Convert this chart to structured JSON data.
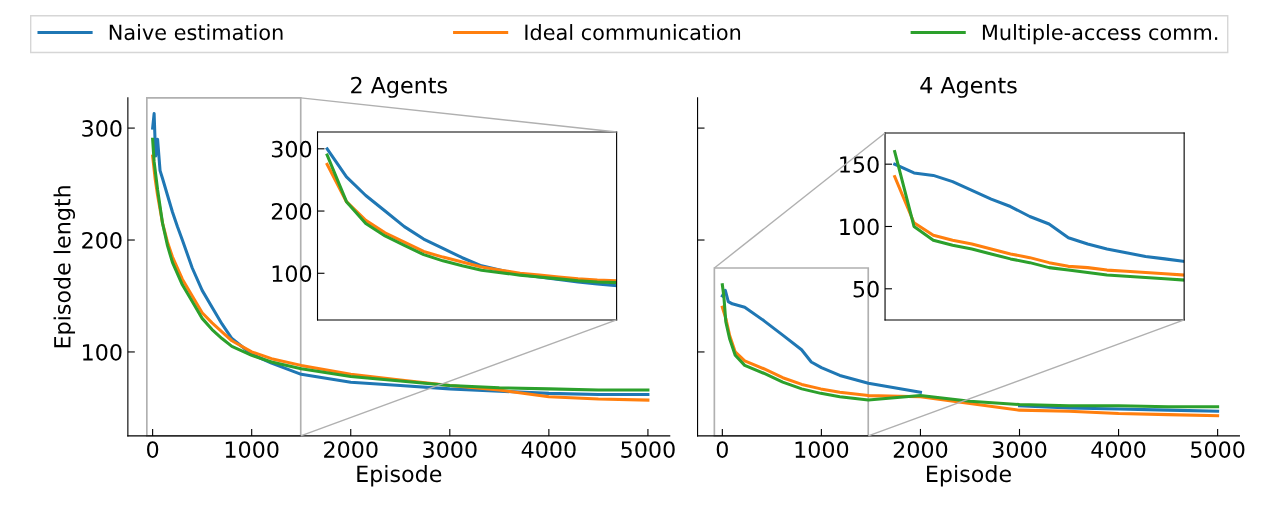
{
  "chart_data": [
    {
      "type": "line",
      "title": "2 Agents",
      "xlabel": "Episode",
      "ylabel": "Episode length",
      "xlim": [
        -250,
        5220
      ],
      "ylim": [
        25,
        327
      ],
      "xticks": [
        0,
        1000,
        2000,
        3000,
        4000,
        5000
      ],
      "yticks": [
        100,
        200,
        300
      ],
      "legend": "top",
      "grid": false,
      "line_style": "solid",
      "series": [
        {
          "name": "Naive estimation",
          "color": "#1f77b4",
          "x": [
            0,
            15,
            30,
            50,
            75,
            100,
            150,
            200,
            250,
            300,
            400,
            500,
            600,
            700,
            800,
            1000,
            1200,
            1500,
            2000,
            2500,
            3000,
            3500,
            4000,
            4500,
            5000
          ],
          "values": [
            300,
            313,
            275,
            290,
            262,
            255,
            240,
            225,
            212,
            200,
            175,
            155,
            140,
            125,
            112,
            98,
            90,
            80,
            73,
            70,
            67,
            65,
            63,
            62,
            62
          ]
        },
        {
          "name": "Ideal communication",
          "color": "#ff7f0e",
          "x": [
            0,
            25,
            50,
            100,
            150,
            200,
            300,
            400,
            500,
            600,
            700,
            800,
            1000,
            1200,
            1500,
            2000,
            2500,
            3000,
            3500,
            4000,
            4500,
            5000
          ],
          "values": [
            275,
            255,
            240,
            215,
            198,
            185,
            165,
            150,
            135,
            126,
            118,
            110,
            100,
            94,
            88,
            80,
            75,
            70,
            66,
            60,
            58,
            57
          ]
        },
        {
          "name": "Multiple-access comm.",
          "color": "#2ca02c",
          "x": [
            0,
            15,
            50,
            100,
            150,
            200,
            300,
            400,
            500,
            600,
            700,
            800,
            1000,
            1200,
            1500,
            2000,
            2500,
            3000,
            3500,
            4000,
            4500,
            5000
          ],
          "values": [
            290,
            270,
            245,
            215,
            195,
            180,
            160,
            145,
            130,
            120,
            112,
            105,
            97,
            91,
            85,
            78,
            74,
            70,
            68,
            67,
            66,
            66
          ]
        }
      ]
    },
    {
      "type": "line",
      "categories": [
        null,
        null,
        null,
        null,
        null,
        null,
        null,
        null,
        null,
        null,
        null,
        null,
        null,
        null,
        null,
        null
      ],
      "ylim": [
        25,
        327
      ],
      "yticks": [
        100,
        200,
        300
      ],
      "grid": false,
      "line_style": "solid",
      "series": [
        {
          "color": "#1f77b4",
          "values": [
            300,
            255,
            225,
            200,
            175,
            155,
            140,
            125,
            112,
            105,
            98,
            94,
            90,
            86,
            83,
            80
          ]
        },
        {
          "color": "#ff7f0e",
          "values": [
            275,
            215,
            185,
            165,
            150,
            135,
            126,
            118,
            110,
            105,
            100,
            97,
            94,
            91,
            89,
            88
          ]
        },
        {
          "color": "#2ca02c",
          "values": [
            290,
            215,
            180,
            160,
            145,
            130,
            120,
            112,
            105,
            101,
            97,
            94,
            91,
            88,
            86,
            85
          ]
        }
      ]
    },
    {
      "type": "line",
      "title": "4 Agents",
      "xlabel": "Episode",
      "xlim": [
        -250,
        5220
      ],
      "ylim": [
        25,
        327
      ],
      "xticks": [
        0,
        1000,
        2000,
        3000,
        4000,
        5000
      ],
      "yticks": [
        {
          "value": 100,
          "label": null
        },
        {
          "value": 200,
          "label": null
        },
        {
          "value": 300,
          "label": null
        }
      ],
      "tick_labels": "x",
      "grid": false,
      "line_style": "solid",
      "series": [
        {
          "color": "#1f77b4",
          "x": [
            0,
            30,
            60,
            100,
            226,
            418,
            610,
            800,
            898,
            1000,
            1186,
            1474,
            2000,
            2500,
            3000,
            3500,
            4000,
            4500,
            5000
          ],
          "values": [
            150,
            155,
            145,
            143,
            140,
            128,
            115,
            102,
            91,
            86,
            79,
            72,
            64,
            null,
            52,
            50,
            49,
            48,
            47
          ]
        },
        {
          "color": "#ff7f0e",
          "x": [
            0,
            35,
            73,
            130,
            226,
            418,
            610,
            802,
            994,
            1186,
            1474,
            2000,
            2500,
            3000,
            3500,
            4000,
            4500,
            5000
          ],
          "values": [
            140,
            130,
            115,
            100,
            92,
            85,
            77,
            71,
            67,
            64,
            61,
            60,
            54,
            48,
            47,
            45,
            44,
            43
          ]
        },
        {
          "color": "#2ca02c",
          "x": [
            0,
            15,
            35,
            73,
            130,
            226,
            418,
            610,
            802,
            994,
            1186,
            1474,
            2000,
            2500,
            3000,
            3500,
            4000,
            4500,
            5000
          ],
          "values": [
            160,
            150,
            127,
            112,
            97,
            88,
            81,
            73,
            67,
            63,
            60,
            57,
            61,
            56,
            53,
            52,
            52,
            51,
            51
          ]
        }
      ]
    },
    {
      "type": "line",
      "categories": [
        null,
        null,
        null,
        null,
        null,
        null,
        null,
        null,
        null,
        null,
        null,
        null,
        null,
        null,
        null,
        null
      ],
      "ylim": [
        25,
        175
      ],
      "yticks": [
        50,
        100,
        150
      ],
      "grid": false,
      "line_style": "solid",
      "series": [
        {
          "color": "#1f77b4",
          "values": [
            150,
            143,
            141,
            136,
            129,
            122,
            116,
            108,
            102,
            91,
            86,
            82,
            79,
            76,
            74,
            72
          ]
        },
        {
          "color": "#ff7f0e",
          "values": [
            140,
            103,
            93,
            89,
            86,
            82,
            78,
            75,
            71,
            68,
            67,
            65,
            64,
            63,
            62,
            61
          ]
        },
        {
          "color": "#2ca02c",
          "values": [
            160,
            100,
            89,
            85,
            82,
            78,
            74,
            71,
            67,
            65,
            63,
            61,
            60,
            59,
            58,
            57
          ]
        }
      ]
    }
  ]
}
